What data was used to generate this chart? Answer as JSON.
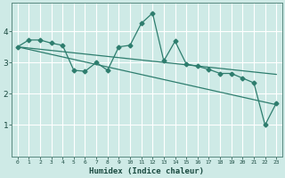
{
  "xlabel": "Humidex (Indice chaleur)",
  "ylabel": "",
  "bg_color": "#ceeae6",
  "grid_color": "#ffffff",
  "line_color": "#2e7d6e",
  "xlim": [
    -0.5,
    23.5
  ],
  "ylim": [
    0.0,
    4.9
  ],
  "yticks": [
    1,
    2,
    3,
    4
  ],
  "xtick_labels": [
    "0",
    "1",
    "2",
    "3",
    "4",
    "5",
    "6",
    "7",
    "8",
    "9",
    "10",
    "11",
    "12",
    "13",
    "14",
    "15",
    "16",
    "17",
    "18",
    "19",
    "20",
    "21",
    "22",
    "23"
  ],
  "series1_x": [
    0,
    1,
    2,
    3,
    4,
    5,
    6,
    7,
    8,
    9,
    10,
    11,
    12,
    13,
    14,
    15,
    16,
    17,
    18,
    19,
    20,
    21,
    22,
    23
  ],
  "series1_y": [
    3.5,
    3.72,
    3.72,
    3.62,
    3.55,
    2.75,
    2.72,
    3.0,
    2.75,
    3.5,
    3.55,
    4.25,
    4.58,
    3.05,
    3.68,
    2.95,
    2.88,
    2.78,
    2.65,
    2.65,
    2.5,
    2.35,
    1.0,
    1.7
  ],
  "series2_x": [
    0,
    23
  ],
  "series2_y": [
    3.5,
    1.65
  ],
  "series3_x": [
    0,
    23
  ],
  "series3_y": [
    3.5,
    2.62
  ]
}
